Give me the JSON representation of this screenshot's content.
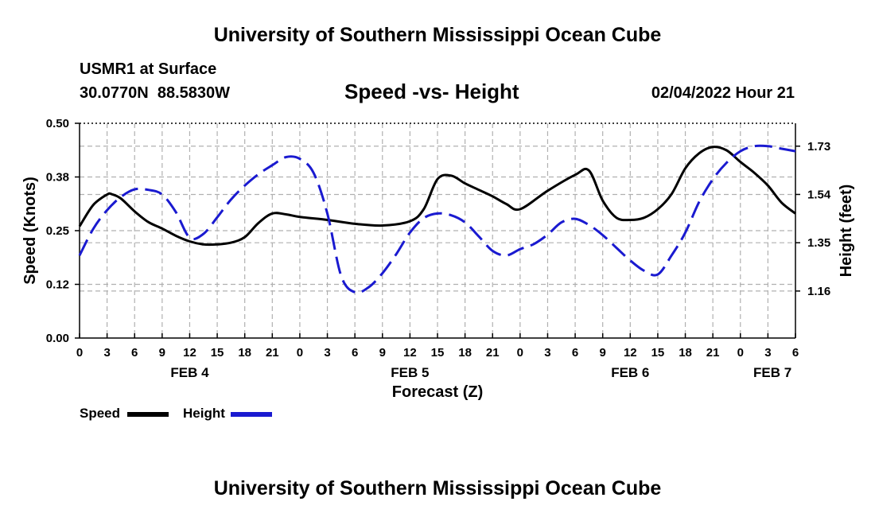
{
  "header": {
    "title": "University of Southern Mississippi Ocean Cube",
    "station": "USMR1 at Surface",
    "coords": "30.0770N  88.5830W",
    "chart_title": "Speed -vs- Height",
    "timestamp": "02/04/2022 Hour 21"
  },
  "footer": {
    "title": "University of Southern Mississippi Ocean Cube"
  },
  "legend": {
    "speed_label": "Speed",
    "height_label": "Height"
  },
  "colors": {
    "speed": "#000000",
    "height": "#1a1ad0",
    "grid": "#b0b0b0"
  },
  "chart_data": {
    "type": "line",
    "title": "Speed -vs- Height",
    "xlabel": "Forecast (Z)",
    "ylabel": "Speed (Knots)",
    "y2label": "Height (feet)",
    "xlim": [
      0,
      78
    ],
    "ylim": [
      0,
      0.5
    ],
    "y2lim": [
      0.975,
      1.82
    ],
    "x_ticks": [
      0,
      3,
      6,
      9,
      12,
      15,
      18,
      21,
      24,
      27,
      30,
      33,
      36,
      39,
      42,
      45,
      48,
      51,
      54,
      57,
      60,
      63,
      66,
      69,
      72,
      75,
      78
    ],
    "x_tick_labels": [
      "0",
      "3",
      "6",
      "9",
      "12",
      "15",
      "18",
      "21",
      "0",
      "3",
      "6",
      "9",
      "12",
      "15",
      "18",
      "21",
      "0",
      "3",
      "6",
      "9",
      "12",
      "15",
      "18",
      "21",
      "0",
      "3",
      "6"
    ],
    "date_labels": [
      {
        "x": 12,
        "label": "FEB 4"
      },
      {
        "x": 36,
        "label": "FEB 5"
      },
      {
        "x": 60,
        "label": "FEB 6"
      },
      {
        "x": 75.5,
        "label": "FEB 7"
      }
    ],
    "y_ticks": [
      0,
      0.125,
      0.25,
      0.375,
      0.5
    ],
    "y_tick_labels": [
      "0.00",
      "0.12",
      "0.25",
      "0.38",
      "0.50"
    ],
    "y2_ticks": [
      1.16,
      1.35,
      1.54,
      1.73
    ],
    "y2_tick_labels": [
      "1.16",
      "1.35",
      "1.54",
      "1.73"
    ],
    "series": [
      {
        "name": "Speed",
        "axis": "left",
        "style": "solid",
        "x": [
          0,
          1.5,
          3,
          3.5,
          4.5,
          6,
          7.5,
          9,
          10.5,
          12,
          13.5,
          15,
          16.5,
          18,
          19.5,
          21,
          22.5,
          24,
          27,
          30,
          33,
          36,
          37.5,
          39,
          40.5,
          42,
          43.5,
          45,
          46.5,
          48,
          51,
          54,
          55.5,
          57,
          58.5,
          60,
          61.5,
          63,
          64.5,
          66,
          67.5,
          69,
          70.5,
          72,
          73.5,
          75,
          76.5,
          78
        ],
        "values": [
          0.26,
          0.31,
          0.334,
          0.335,
          0.325,
          0.295,
          0.27,
          0.255,
          0.238,
          0.225,
          0.218,
          0.218,
          0.222,
          0.235,
          0.268,
          0.29,
          0.288,
          0.282,
          0.275,
          0.266,
          0.262,
          0.272,
          0.3,
          0.37,
          0.378,
          0.36,
          0.345,
          0.33,
          0.312,
          0.3,
          0.343,
          0.38,
          0.39,
          0.32,
          0.28,
          0.275,
          0.28,
          0.3,
          0.335,
          0.395,
          0.43,
          0.445,
          0.437,
          0.41,
          0.385,
          0.355,
          0.315,
          0.29
        ]
      },
      {
        "name": "Height",
        "axis": "right",
        "style": "dashed",
        "x": [
          0,
          1.5,
          3,
          4.5,
          6,
          7.5,
          9,
          10.5,
          12,
          13.5,
          15,
          16.5,
          18,
          19.5,
          21,
          22.5,
          24,
          25.5,
          27,
          28.5,
          30,
          31.5,
          33,
          34.5,
          36,
          37.5,
          39,
          40.5,
          42,
          43.5,
          45,
          46.5,
          48,
          49.5,
          51,
          52.5,
          54,
          55.5,
          57,
          58.5,
          60,
          61.5,
          63,
          64.5,
          66,
          67.5,
          69,
          70.5,
          72,
          73.5,
          75,
          76.5,
          78
        ],
        "values": [
          1.3,
          1.405,
          1.478,
          1.53,
          1.56,
          1.558,
          1.54,
          1.47,
          1.37,
          1.385,
          1.45,
          1.52,
          1.575,
          1.62,
          1.655,
          1.687,
          1.68,
          1.625,
          1.465,
          1.22,
          1.155,
          1.175,
          1.23,
          1.305,
          1.39,
          1.447,
          1.465,
          1.458,
          1.43,
          1.375,
          1.318,
          1.3,
          1.325,
          1.345,
          1.382,
          1.43,
          1.444,
          1.42,
          1.38,
          1.33,
          1.28,
          1.24,
          1.225,
          1.3,
          1.39,
          1.51,
          1.6,
          1.665,
          1.71,
          1.73,
          1.73,
          1.72,
          1.71
        ]
      }
    ],
    "legend_position": "bottom-left",
    "grid": true
  }
}
